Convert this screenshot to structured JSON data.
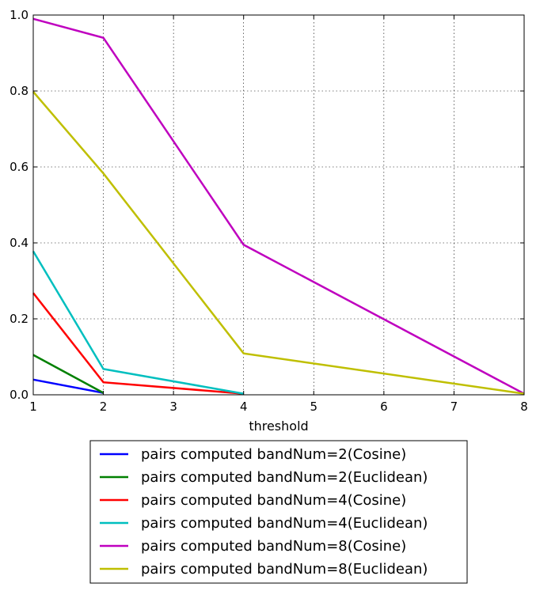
{
  "chart_data": {
    "type": "line",
    "xlabel": "threshold",
    "ylabel": "",
    "xlim": [
      1,
      8
    ],
    "ylim": [
      0.0,
      1.0
    ],
    "xticks": [
      "1",
      "2",
      "3",
      "4",
      "5",
      "6",
      "7",
      "8"
    ],
    "yticks": [
      "0.0",
      "0.2",
      "0.4",
      "0.6",
      "0.8",
      "1.0"
    ],
    "grid": true,
    "legend_position": "below",
    "series": [
      {
        "name": "pairs computed bandNum=2(Cosine)",
        "color": "#0000ff",
        "x": [
          1,
          2
        ],
        "y": [
          0.04,
          0.005
        ]
      },
      {
        "name": "pairs computed bandNum=2(Euclidean)",
        "color": "#008000",
        "x": [
          1,
          2
        ],
        "y": [
          0.105,
          0.005
        ]
      },
      {
        "name": "pairs computed bandNum=4(Cosine)",
        "color": "#ff0000",
        "x": [
          1,
          2,
          4
        ],
        "y": [
          0.268,
          0.033,
          0.003
        ]
      },
      {
        "name": "pairs computed bandNum=4(Euclidean)",
        "color": "#00bfbf",
        "x": [
          1,
          2,
          4
        ],
        "y": [
          0.378,
          0.068,
          0.003
        ]
      },
      {
        "name": "pairs computed bandNum=8(Cosine)",
        "color": "#bf00bf",
        "x": [
          1,
          2,
          4,
          8
        ],
        "y": [
          0.99,
          0.94,
          0.395,
          0.003
        ]
      },
      {
        "name": "pairs computed bandNum=8(Euclidean)",
        "color": "#bfbf00",
        "x": [
          1,
          2,
          4,
          8
        ],
        "y": [
          0.798,
          0.583,
          0.109,
          0.003
        ]
      }
    ]
  }
}
